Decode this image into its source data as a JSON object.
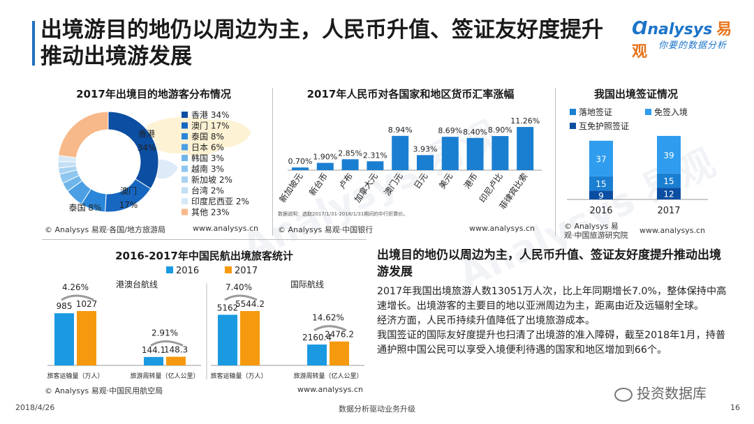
{
  "page": {
    "title": "出境游目的地仍以周边为主，人民币升值、签证友好度提升推动出境游发展",
    "logo_name": "nalysys",
    "logo_cn": "易观",
    "logo_slogan": "你要的数据分析",
    "date": "2018/4/26",
    "footer_center": "数据分析驱动业务升级",
    "page_number": "16",
    "wechat_label": "投资数据库",
    "watermark_text": "Analysys 易观"
  },
  "accent_colors": {
    "blue_2016": "#1b9ae2",
    "orange_2017": "#f59a0e",
    "bar_blue": "#1b7fd1",
    "dark_blue": "#0b4ea2",
    "title_bar": "#1f6fbf"
  },
  "pie_chart": {
    "title": "2017年出境目的地游客分布情况",
    "source": "© Analysys 易观·各国/地方旅游局",
    "site": "www.analysys.cn",
    "center_labels": [
      {
        "name": "香港",
        "pct": "34%"
      },
      {
        "name": "澳门",
        "pct": "17%"
      },
      {
        "name": "泰国",
        "pct": "8%"
      }
    ]
  },
  "fx_chart": {
    "title": "2017年人民币对各国家和地区货币汇率涨幅",
    "note": "数据说明：选取2017/1/31-2018/1/31期间的中行折算价。",
    "source": "© Analysys 易观·中国银行",
    "site": "www.analysys.cn"
  },
  "visa_chart": {
    "title": "我国出境签证情况",
    "source_line1": "© Analysys 易",
    "source_line2": "观·中国旅游研究院",
    "site": "www.analysys.cn"
  },
  "aviation_chart": {
    "title": "2016-2017年中国民航出境旅客统计",
    "section_labels": [
      "港澳台航线",
      "国际航线"
    ],
    "source": "© Analysys 易观·中国民用航空局",
    "site": "www.analysys.cn"
  },
  "summary": {
    "title": "出境目的地仍以周边为主，人民币升值、签证友好度提升推动出境游发展",
    "paragraphs": [
      "2017年我国出境旅游人数13051万人次，比上年同期增长7.0%，整体保持中高速增长。出境游客的主要目的地以亚洲周边为主，距离由近及远辐射全球。",
      "经济方面，人民币持续升值降低了出境旅游成本。",
      "我国签证的国际友好度提升也扫清了出境游的准入障碍，截至2018年1月，持普通护照中国公民可以享受入境便利待遇的国家和地区增加到66个。"
    ]
  },
  "chart_data": [
    {
      "type": "pie",
      "style": "donut",
      "title": "2017年出境目的地游客分布情况",
      "categories": [
        "香港",
        "澳门",
        "泰国",
        "日本",
        "韩国",
        "越南",
        "新加坡",
        "台湾",
        "印度尼西亚",
        "其他"
      ],
      "values": [
        34,
        17,
        8,
        6,
        3,
        3,
        2,
        2,
        2,
        23
      ],
      "labels": [
        "34%",
        "17%",
        "8%",
        "6%",
        "3%",
        "3%",
        "2%",
        "2%",
        "2%",
        "23%"
      ],
      "colors": [
        "#0b4ea2",
        "#1766c0",
        "#2a86d8",
        "#4c9fe3",
        "#6fb5ea",
        "#8fc6ef",
        "#a9d2f1",
        "#c2dff4",
        "#d6e9f7",
        "#f7b98a"
      ],
      "legend": "right"
    },
    {
      "type": "bar",
      "title": "2017年人民币对各国家和地区货币汇率涨幅",
      "categories": [
        "新加坡元",
        "新台币",
        "卢布",
        "加拿大元",
        "澳门元",
        "日元",
        "美元",
        "港币",
        "印尼卢比",
        "菲律宾比索"
      ],
      "values": [
        0.7,
        1.9,
        2.85,
        2.31,
        8.94,
        3.93,
        8.69,
        8.4,
        8.9,
        11.26
      ],
      "labels": [
        "0.70%",
        "1.90%",
        "2.85%",
        "2.31%",
        "8.94%",
        "3.93%",
        "8.69%",
        "8.40%",
        "8.90%",
        "11.26%"
      ],
      "ylim": [
        0,
        12
      ],
      "color": "#1b7fd1"
    },
    {
      "type": "bar",
      "stacked": true,
      "title": "我国出境签证情况",
      "categories": [
        "2016",
        "2017"
      ],
      "series": [
        {
          "name": "互免护照签证",
          "values": [
            9,
            12
          ],
          "color": "#0b4ea2"
        },
        {
          "name": "落地签证",
          "values": [
            15,
            15
          ],
          "color": "#1b7fd1"
        },
        {
          "name": "免签入境",
          "values": [
            37,
            39
          ],
          "color": "#2f9cee"
        }
      ],
      "ylim": [
        0,
        70
      ],
      "legend": "top"
    },
    {
      "type": "bar",
      "title": "港澳台航线",
      "categories": [
        "旅客运输量（万人）",
        "旅游周转量（亿人公里）"
      ],
      "series": [
        {
          "name": "2016",
          "values": [
            985,
            144.1
          ],
          "labels": [
            "985",
            "144.1"
          ],
          "color": "#1b9ae2"
        },
        {
          "name": "2017",
          "values": [
            1027,
            148.3
          ],
          "labels": [
            "1027",
            "148.3"
          ],
          "color": "#f59a0e"
        }
      ],
      "growth": [
        "4.26%",
        "2.91%"
      ],
      "legend": "top"
    },
    {
      "type": "bar",
      "title": "国际航线",
      "categories": [
        "旅客运输量（万人）",
        "旅游周转量（亿人公里）"
      ],
      "series": [
        {
          "name": "2016",
          "values": [
            5162,
            2160.4
          ],
          "labels": [
            "5162",
            "2160.4"
          ],
          "color": "#1b9ae2"
        },
        {
          "name": "2017",
          "values": [
            5544.2,
            2476.2
          ],
          "labels": [
            "5544.2",
            "2476.2"
          ],
          "color": "#f59a0e"
        }
      ],
      "growth": [
        "7.40%",
        "14.62%"
      ],
      "legend": "top"
    }
  ]
}
